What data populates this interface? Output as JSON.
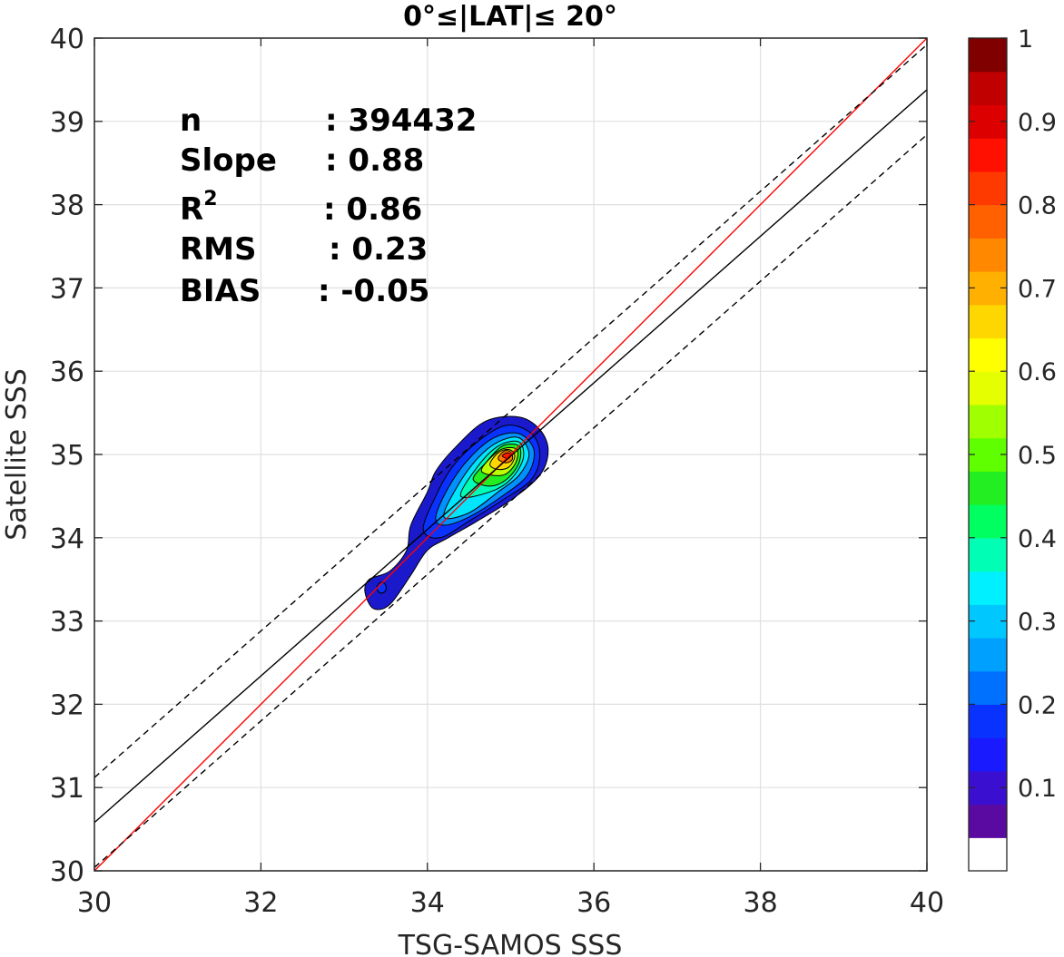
{
  "chart_data": {
    "type": "contour-scatter",
    "title": "0°≤|LAT|≤ 20°",
    "xlabel": "TSG-SAMOS SSS",
    "ylabel": "Satellite SSS",
    "xlim": [
      30,
      40
    ],
    "ylim": [
      30,
      40
    ],
    "xticks": [
      30,
      32,
      34,
      36,
      38,
      40
    ],
    "yticks": [
      30,
      31,
      32,
      33,
      34,
      35,
      36,
      37,
      38,
      39,
      40
    ],
    "grid": true,
    "stats": [
      {
        "label": "n",
        "value": ": 394432"
      },
      {
        "label": "Slope",
        "value": ": 0.88"
      },
      {
        "label": "R",
        "sup": "2",
        "value": ": 0.86"
      },
      {
        "label": "RMS",
        "value": ": 0.23"
      },
      {
        "label": "BIAS",
        "value": ": -0.05"
      }
    ],
    "lines": [
      {
        "name": "1:1 line",
        "style": "solid",
        "color": "#ff0000",
        "points": [
          [
            30,
            30
          ],
          [
            40,
            40
          ]
        ]
      },
      {
        "name": "regression fit",
        "style": "solid",
        "color": "#000000",
        "points": [
          [
            30,
            30.58
          ],
          [
            40,
            39.38
          ]
        ]
      },
      {
        "name": "upper bound",
        "style": "dashed",
        "color": "#000000",
        "points": [
          [
            30,
            31.12
          ],
          [
            40,
            39.92
          ]
        ]
      },
      {
        "name": "lower bound",
        "style": "dashed",
        "color": "#000000",
        "points": [
          [
            30,
            30.04
          ],
          [
            40,
            38.84
          ]
        ]
      }
    ],
    "density": {
      "peak": [
        34.95,
        35.0
      ],
      "levels": [
        0.05,
        0.15,
        0.25,
        0.35,
        0.45,
        0.55,
        0.65,
        0.75,
        0.85,
        0.95
      ],
      "level_colors": [
        "#1a1acc",
        "#0a32ff",
        "#0090ff",
        "#00e6ff",
        "#00ffb4",
        "#22ee22",
        "#bbff00",
        "#ffd700",
        "#ff7a00",
        "#ff1a00"
      ],
      "contour_rings": [
        {
          "level": 0.05,
          "points": [
            [
              33.25,
              33.35
            ],
            [
              33.3,
              33.5
            ],
            [
              33.55,
              33.6
            ],
            [
              33.75,
              33.85
            ],
            [
              33.8,
              34.15
            ],
            [
              34.0,
              34.55
            ],
            [
              34.1,
              34.8
            ],
            [
              34.35,
              35.1
            ],
            [
              34.7,
              35.4
            ],
            [
              35.1,
              35.45
            ],
            [
              35.35,
              35.3
            ],
            [
              35.45,
              35.05
            ],
            [
              35.35,
              34.75
            ],
            [
              35.0,
              34.45
            ],
            [
              34.6,
              34.2
            ],
            [
              34.25,
              34.0
            ],
            [
              34.0,
              33.85
            ],
            [
              33.8,
              33.55
            ],
            [
              33.55,
              33.2
            ],
            [
              33.35,
              33.15
            ]
          ]
        },
        {
          "level": 0.15,
          "points": [
            [
              33.95,
              34.1
            ],
            [
              34.1,
              34.5
            ],
            [
              34.3,
              34.85
            ],
            [
              34.6,
              35.15
            ],
            [
              34.95,
              35.35
            ],
            [
              35.25,
              35.25
            ],
            [
              35.35,
              35.0
            ],
            [
              35.25,
              34.7
            ],
            [
              34.9,
              34.45
            ],
            [
              34.5,
              34.2
            ],
            [
              34.15,
              34.0
            ]
          ]
        },
        {
          "level": 0.25,
          "points": [
            [
              34.1,
              34.25
            ],
            [
              34.25,
              34.6
            ],
            [
              34.5,
              34.95
            ],
            [
              34.8,
              35.2
            ],
            [
              35.1,
              35.25
            ],
            [
              35.28,
              35.05
            ],
            [
              35.2,
              34.75
            ],
            [
              34.9,
              34.5
            ],
            [
              34.5,
              34.25
            ],
            [
              34.2,
              34.15
            ]
          ]
        },
        {
          "level": 0.35,
          "points": [
            [
              34.2,
              34.25
            ],
            [
              34.35,
              34.6
            ],
            [
              34.6,
              34.95
            ],
            [
              34.85,
              35.15
            ],
            [
              35.1,
              35.2
            ],
            [
              35.22,
              35.0
            ],
            [
              35.1,
              34.75
            ],
            [
              34.85,
              34.55
            ],
            [
              34.5,
              34.3
            ]
          ]
        },
        {
          "level": 0.45,
          "points": [
            [
              34.4,
              34.5
            ],
            [
              34.6,
              34.85
            ],
            [
              34.85,
              35.1
            ],
            [
              35.1,
              35.15
            ],
            [
              35.15,
              34.95
            ],
            [
              35.0,
              34.7
            ],
            [
              34.75,
              34.55
            ]
          ]
        },
        {
          "level": 0.55,
          "points": [
            [
              34.55,
              34.7
            ],
            [
              34.7,
              34.9
            ],
            [
              34.9,
              35.1
            ],
            [
              35.1,
              35.1
            ],
            [
              35.1,
              34.9
            ],
            [
              34.95,
              34.7
            ],
            [
              34.75,
              34.62
            ]
          ]
        },
        {
          "level": 0.65,
          "points": [
            [
              34.65,
              34.8
            ],
            [
              34.8,
              35.0
            ],
            [
              34.95,
              35.08
            ],
            [
              35.08,
              35.05
            ],
            [
              35.05,
              34.88
            ],
            [
              34.9,
              34.75
            ]
          ]
        },
        {
          "level": 0.75,
          "points": [
            [
              34.75,
              34.88
            ],
            [
              34.85,
              35.02
            ],
            [
              34.98,
              35.06
            ],
            [
              35.05,
              34.98
            ],
            [
              34.98,
              34.85
            ],
            [
              34.85,
              34.82
            ]
          ]
        },
        {
          "level": 0.85,
          "points": [
            [
              34.85,
              34.95
            ],
            [
              34.92,
              35.04
            ],
            [
              35.0,
              35.03
            ],
            [
              35.02,
              34.94
            ],
            [
              34.94,
              34.9
            ]
          ]
        },
        {
          "level": 0.95,
          "points": [
            [
              34.9,
              34.98
            ],
            [
              34.95,
              35.02
            ],
            [
              35.0,
              35.0
            ],
            [
              34.97,
              34.95
            ]
          ]
        }
      ],
      "small_blob": {
        "center": [
          33.45,
          33.4
        ],
        "level": 0.15
      }
    },
    "colorbar": {
      "range": [
        0,
        1
      ],
      "ticks": [
        "0.1",
        "0.2",
        "0.3",
        "0.4",
        "0.5",
        "0.6",
        "0.7",
        "0.8",
        "0.9",
        "1"
      ],
      "tick_values": [
        0.1,
        0.2,
        0.3,
        0.4,
        0.5,
        0.6,
        0.7,
        0.8,
        0.9,
        1.0
      ],
      "colors": [
        "#ffffff",
        "#5a0aa0",
        "#3a0fd0",
        "#1a1aff",
        "#0a32ff",
        "#0070ff",
        "#00a0ff",
        "#00c8ff",
        "#00f0ff",
        "#00ffb4",
        "#00ff60",
        "#22ee22",
        "#60ff00",
        "#a0ff00",
        "#e6ff00",
        "#ffff00",
        "#ffd700",
        "#ffb000",
        "#ff8800",
        "#ff6000",
        "#ff3a00",
        "#ff1000",
        "#dd0000",
        "#c00000",
        "#800000"
      ]
    }
  }
}
